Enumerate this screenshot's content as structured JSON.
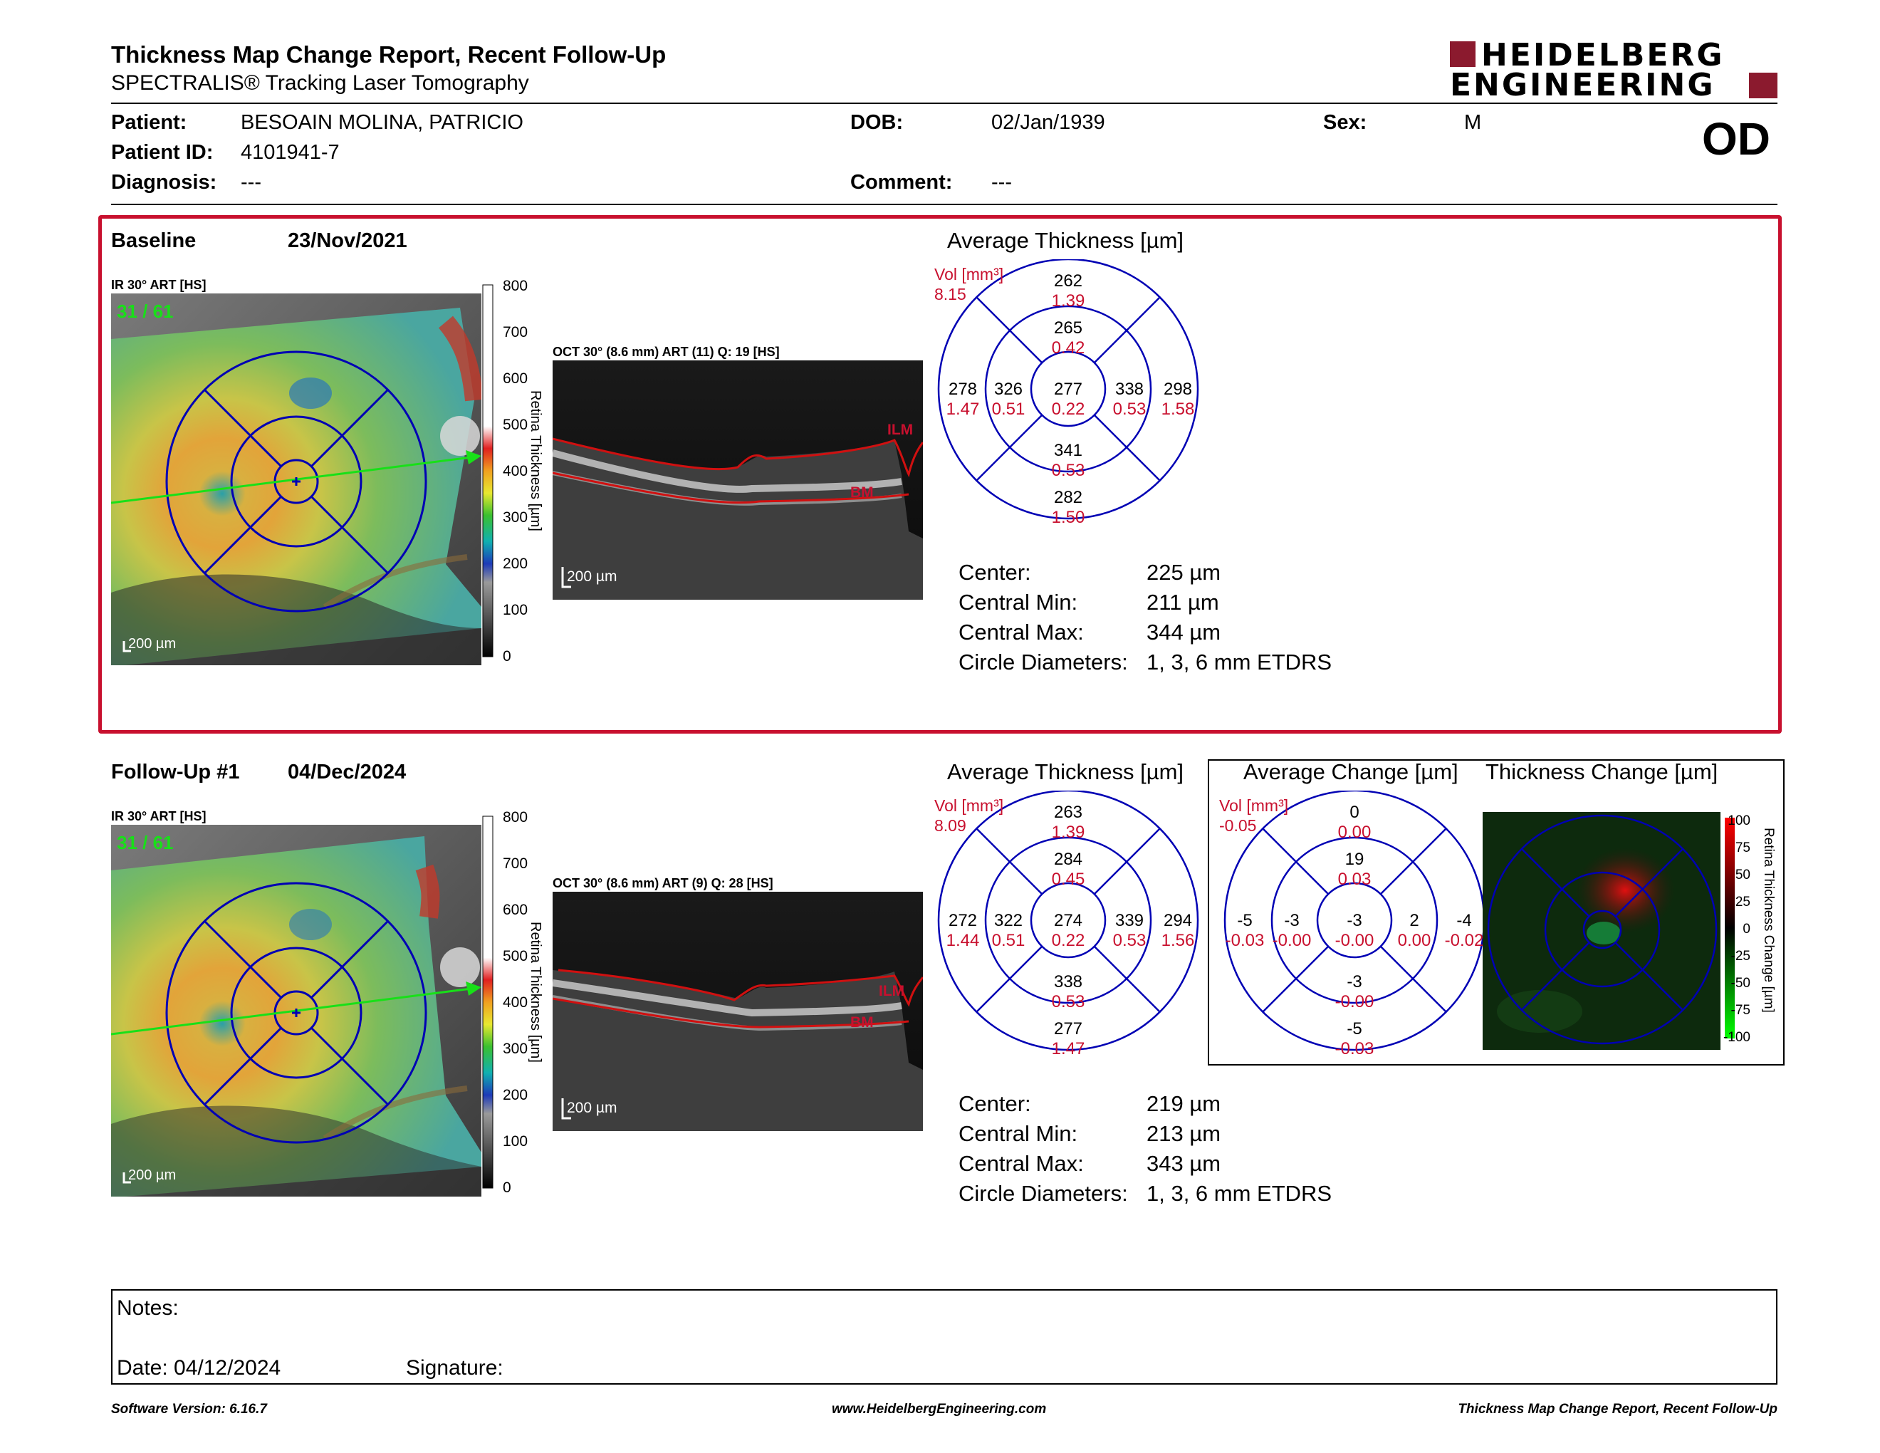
{
  "header": {
    "title": "Thickness Map Change Report, Recent Follow-Up",
    "subtitle": "SPECTRALIS® Tracking Laser Tomography",
    "logo_line1": "HEIDELBERG",
    "logo_line2": "ENGINEERING",
    "eye": "OD"
  },
  "patient": {
    "name_label": "Patient:",
    "name": "BESOAIN MOLINA, PATRICIO",
    "id_label": "Patient ID:",
    "id": "4101941-7",
    "diagnosis_label": "Diagnosis:",
    "diagnosis": "---",
    "dob_label": "DOB:",
    "dob": "02/Jan/1939",
    "comment_label": "Comment:",
    "comment": "---",
    "sex_label": "Sex:",
    "sex": "M"
  },
  "colors": {
    "accent": "#8b1a2e",
    "red": "#c8102e",
    "etdrs": "#0000b4",
    "fundus_green": "#18e018"
  },
  "baseline": {
    "label": "Baseline",
    "date": "23/Nov/2021",
    "ir_label": "IR 30° ART [HS]",
    "frame": "31 / 61",
    "oct_label": "OCT 30° (8.6 mm) ART (11) Q: 19 [HS]",
    "scale": "200 µm",
    "scale_ticks": [
      "800",
      "700",
      "600",
      "500",
      "400",
      "300",
      "200",
      "100",
      "0"
    ],
    "scale_title": "Retina Thickness [µm]",
    "ilm": "ILM",
    "bm": "BM",
    "avg_title": "Average Thickness [µm]",
    "vol_label": "Vol [mm³]",
    "vol": "8.15",
    "sectors": {
      "outer_top": [
        "262",
        "1.39"
      ],
      "inner_top": [
        "265",
        "0.42"
      ],
      "outer_left": [
        "278",
        "1.47"
      ],
      "inner_left": [
        "326",
        "0.51"
      ],
      "center": [
        "277",
        "0.22"
      ],
      "inner_right": [
        "338",
        "0.53"
      ],
      "outer_right": [
        "298",
        "1.58"
      ],
      "inner_bottom": [
        "341",
        "0.53"
      ],
      "outer_bottom": [
        "282",
        "1.50"
      ]
    },
    "stats": [
      {
        "label": "Center:",
        "value": "225 µm"
      },
      {
        "label": "Central Min:",
        "value": "211 µm"
      },
      {
        "label": "Central Max:",
        "value": "344 µm"
      },
      {
        "label": "Circle Diameters:",
        "value": "1, 3, 6 mm ETDRS"
      }
    ]
  },
  "followup": {
    "label": "Follow-Up #1",
    "date": "04/Dec/2024",
    "ir_label": "IR 30° ART [HS]",
    "frame": "31 / 61",
    "oct_label": "OCT 30° (8.6 mm) ART (9) Q: 28 [HS]",
    "scale": "200 µm",
    "scale_ticks": [
      "800",
      "700",
      "600",
      "500",
      "400",
      "300",
      "200",
      "100",
      "0"
    ],
    "scale_title": "Retina Thickness [µm]",
    "ilm": "ILM",
    "bm": "BM",
    "avg_title": "Average Thickness [µm]",
    "vol_label": "Vol [mm³]",
    "vol": "8.09",
    "sectors": {
      "outer_top": [
        "263",
        "1.39"
      ],
      "inner_top": [
        "284",
        "0.45"
      ],
      "outer_left": [
        "272",
        "1.44"
      ],
      "inner_left": [
        "322",
        "0.51"
      ],
      "center": [
        "274",
        "0.22"
      ],
      "inner_right": [
        "339",
        "0.53"
      ],
      "outer_right": [
        "294",
        "1.56"
      ],
      "inner_bottom": [
        "338",
        "0.53"
      ],
      "outer_bottom": [
        "277",
        "1.47"
      ]
    },
    "stats": [
      {
        "label": "Center:",
        "value": "219 µm"
      },
      {
        "label": "Central Min:",
        "value": "213 µm"
      },
      {
        "label": "Central Max:",
        "value": "343 µm"
      },
      {
        "label": "Circle Diameters:",
        "value": "1, 3, 6 mm ETDRS"
      }
    ],
    "change_title": "Average Change [µm]",
    "change_vol_label": "Vol [mm³]",
    "change_vol": "-0.05",
    "change_sectors": {
      "outer_top": [
        "0",
        "0.00"
      ],
      "inner_top": [
        "19",
        "0.03"
      ],
      "outer_left": [
        "-5",
        "-0.03"
      ],
      "inner_left": [
        "-3",
        "-0.00"
      ],
      "center": [
        "-3",
        "-0.00"
      ],
      "inner_right": [
        "2",
        "0.00"
      ],
      "outer_right": [
        "-4",
        "-0.02"
      ],
      "inner_bottom": [
        "-3",
        "-0.00"
      ],
      "outer_bottom": [
        "-5",
        "-0.03"
      ]
    },
    "thickchange_title": "Thickness Change [µm]",
    "thickchange_ticks": [
      "100",
      "75",
      "50",
      "25",
      "0",
      "-25",
      "-50",
      "-75",
      "-100"
    ],
    "thickchange_scale_title": "Retina Thickness Change [µm]"
  },
  "notes": {
    "label": "Notes:",
    "date_label": "Date: 04/12/2024",
    "signature_label": "Signature:"
  },
  "footer": {
    "software": "Software Version: 6.16.7",
    "url": "www.HeidelbergEngineering.com",
    "report": "Thickness Map Change Report, Recent Follow-Up"
  }
}
